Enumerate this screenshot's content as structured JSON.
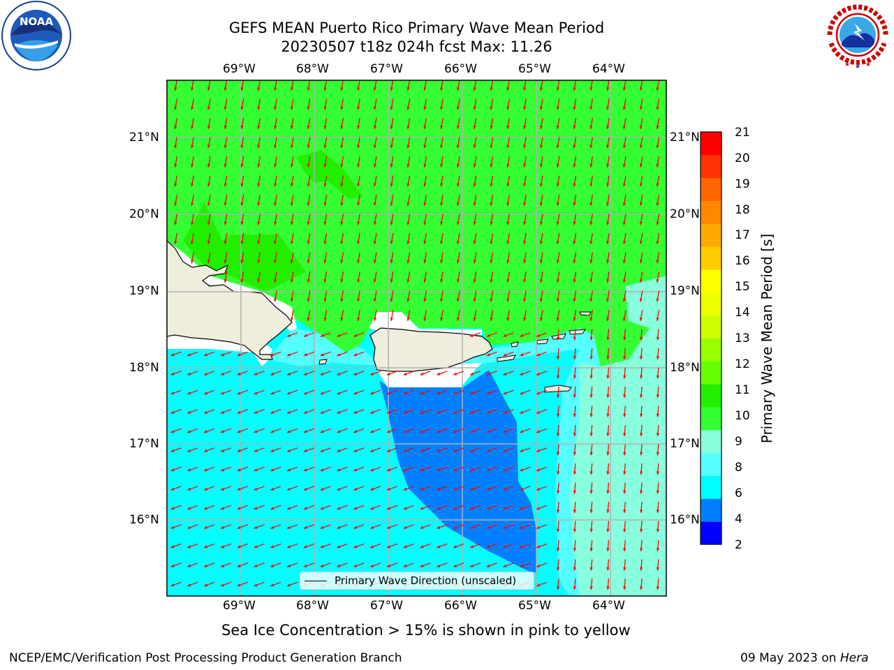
{
  "title": {
    "line1": "GEFS MEAN Puerto Rico Primary Wave Mean Period",
    "line2": "20230507 t18z 024h fcst   Max: 11.26"
  },
  "axes": {
    "lon_labels": [
      "69°W",
      "68°W",
      "67°W",
      "66°W",
      "65°W",
      "64°W"
    ],
    "lat_labels": [
      "21°N",
      "20°N",
      "19°N",
      "18°N",
      "17°N",
      "16°N"
    ]
  },
  "colorbar": {
    "label": "Primary Wave Mean Period [s]",
    "ticks": [
      "21",
      "20",
      "19",
      "18",
      "17",
      "16",
      "15",
      "14",
      "13",
      "12",
      "11",
      "10",
      "9",
      "8",
      "6",
      "4",
      "2"
    ],
    "colors": [
      "#0000ff",
      "#0080ff",
      "#00ffff",
      "#55ffff",
      "#88ffdd",
      "#33ff33",
      "#22ee00",
      "#66ff00",
      "#99ff00",
      "#ccff00",
      "#eeff00",
      "#ffff00",
      "#ffcc00",
      "#ffaa00",
      "#ff8800",
      "#ff6600",
      "#ff3300",
      "#ff0000"
    ]
  },
  "legend": {
    "label": "Primary Wave Direction (unscaled)"
  },
  "notes": {
    "sea_ice": "Sea Ice Concentration > 15% is shown in pink to yellow"
  },
  "footer": {
    "left": "NCEP/EMC/Verification Post Processing Product Generation Branch",
    "right_date": "09 May 2023 on ",
    "right_machine": "Hera"
  },
  "logos": {
    "noaa_text": "NOAA",
    "nws_text": "NATIONAL WEATHER SERVICE"
  },
  "map_colors": {
    "land": "#efeddc",
    "coastline": "#000000",
    "arrow": "#ff0000",
    "grid": "#b0b0b0"
  }
}
